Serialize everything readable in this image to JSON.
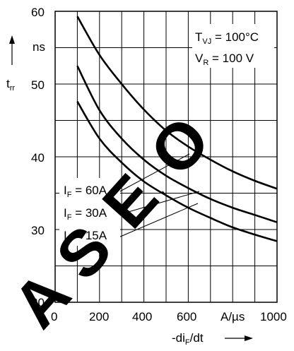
{
  "chart_data": {
    "type": "line",
    "x": [
      100,
      200,
      300,
      400,
      500,
      600,
      700,
      800,
      900,
      1000
    ],
    "series": [
      {
        "name": "I_F = 60A",
        "values": [
          59.3,
          54.0,
          50.0,
          46.5,
          43.6,
          41.4,
          39.6,
          38.0,
          36.7,
          35.6
        ]
      },
      {
        "name": "I_F = 30A",
        "values": [
          52.5,
          46.4,
          42.5,
          39.6,
          37.4,
          35.7,
          34.2,
          33.0,
          32.0,
          31.0
        ]
      },
      {
        "name": "I_F = 15A",
        "values": [
          47.6,
          42.5,
          39.2,
          36.6,
          34.7,
          33.0,
          31.6,
          30.3,
          29.3,
          28.4
        ]
      }
    ],
    "xlim": [
      0,
      1000
    ],
    "ylim": [
      20,
      60
    ],
    "xticks": [
      "0",
      "200",
      "400",
      "600",
      "1000"
    ],
    "yticks": [
      "20",
      "30",
      "40",
      "50",
      "60"
    ],
    "x_unit": "A/µs",
    "y_unit": "ns",
    "grid": true
  },
  "labels": {
    "ylabel_main": "t",
    "ylabel_sub": "rr",
    "xlabel_pre": "-di",
    "xlabel_sub": "F",
    "xlabel_post": "/dt",
    "cond1_main": "T",
    "cond1_sub": "VJ",
    "cond1_val": " = 100°C",
    "cond2_main": "V",
    "cond2_sub": "R",
    "cond2_val": " = 100 V",
    "series_labels": [
      {
        "main": "I",
        "sub": "F",
        "val": " = 60A"
      },
      {
        "main": "I",
        "sub": "F",
        "val": " = 30A"
      },
      {
        "main": "I",
        "sub": "F",
        "val": " = 15A"
      }
    ]
  },
  "watermark": "AS E O"
}
